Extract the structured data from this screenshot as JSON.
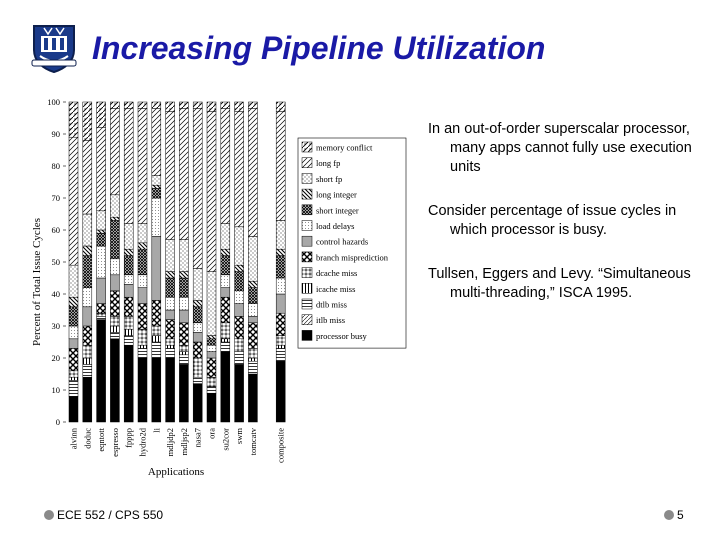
{
  "slide": {
    "title": "Increasing Pipeline Utilization",
    "notes": [
      "In an out-of-order superscalar processor, many apps cannot fully use execution units",
      "Consider percentage of issue cycles in which processor is busy.",
      "Tullsen, Eggers and Levy. “Simultaneous multi-threading,” ISCA 1995."
    ],
    "footer_left": "ECE 552 / CPS 550",
    "page_number": "5",
    "logo_icon": "university-shield-icon"
  },
  "chart_data": {
    "type": "bar",
    "stacked": true,
    "xlabel": "Applications",
    "ylabel": "Percent of Total Issue Cycles",
    "ylim": [
      0,
      100
    ],
    "yticks": [
      0,
      10,
      20,
      30,
      40,
      50,
      60,
      70,
      80,
      90,
      100
    ],
    "legend_position": "right",
    "categories": [
      "alvinn",
      "doduc",
      "eqntott",
      "espresso",
      "fpppp",
      "hydro2d",
      "li",
      "mdljdp2",
      "mdljsp2",
      "nasa7",
      "ora",
      "su2cor",
      "swm",
      "tomcatv",
      "composite"
    ],
    "series": [
      {
        "name": "processor busy",
        "values": [
          8,
          14,
          32,
          26,
          24,
          20,
          20,
          20,
          18,
          12,
          9,
          22,
          18,
          15,
          19
        ]
      },
      {
        "name": "itlb miss",
        "values": [
          0,
          0,
          0,
          0,
          0,
          0,
          0,
          0,
          0,
          0,
          0,
          0,
          0,
          0,
          0
        ]
      },
      {
        "name": "dtlb miss",
        "values": [
          5,
          4,
          1,
          2,
          3,
          3,
          5,
          3,
          3,
          2,
          2,
          3,
          4,
          4,
          4
        ]
      },
      {
        "name": "icache miss",
        "values": [
          1,
          2,
          0,
          2,
          2,
          1,
          2,
          1,
          1,
          0,
          0,
          1,
          0,
          1,
          1
        ]
      },
      {
        "name": "dcache miss",
        "values": [
          2,
          4,
          1,
          3,
          4,
          5,
          3,
          2,
          2,
          6,
          3,
          5,
          4,
          3,
          3
        ]
      },
      {
        "name": "branch misprediction",
        "values": [
          7,
          6,
          3,
          8,
          6,
          8,
          8,
          6,
          7,
          5,
          6,
          8,
          7,
          8,
          7
        ]
      },
      {
        "name": "control hazards",
        "values": [
          3,
          6,
          8,
          5,
          4,
          5,
          20,
          3,
          4,
          3,
          2,
          3,
          4,
          2,
          6
        ]
      },
      {
        "name": "load delays",
        "values": [
          4,
          6,
          10,
          5,
          3,
          4,
          12,
          4,
          4,
          3,
          2,
          4,
          4,
          4,
          5
        ]
      },
      {
        "name": "short integer",
        "values": [
          6,
          10,
          4,
          12,
          6,
          8,
          3,
          6,
          6,
          5,
          2,
          6,
          6,
          5,
          7
        ]
      },
      {
        "name": "long integer",
        "values": [
          3,
          3,
          1,
          1,
          2,
          2,
          1,
          2,
          2,
          2,
          1,
          2,
          2,
          2,
          2
        ]
      },
      {
        "name": "short fp",
        "values": [
          10,
          10,
          6,
          7,
          8,
          6,
          3,
          10,
          10,
          10,
          20,
          8,
          12,
          14,
          9
        ]
      },
      {
        "name": "long fp",
        "values": [
          40,
          23,
          26,
          27,
          36,
          36,
          21,
          40,
          41,
          50,
          50,
          36,
          36,
          40,
          34
        ]
      },
      {
        "name": "memory conflict",
        "values": [
          11,
          12,
          8,
          2,
          2,
          2,
          2,
          3,
          2,
          2,
          3,
          2,
          3,
          2,
          3
        ]
      }
    ],
    "grid": false
  }
}
